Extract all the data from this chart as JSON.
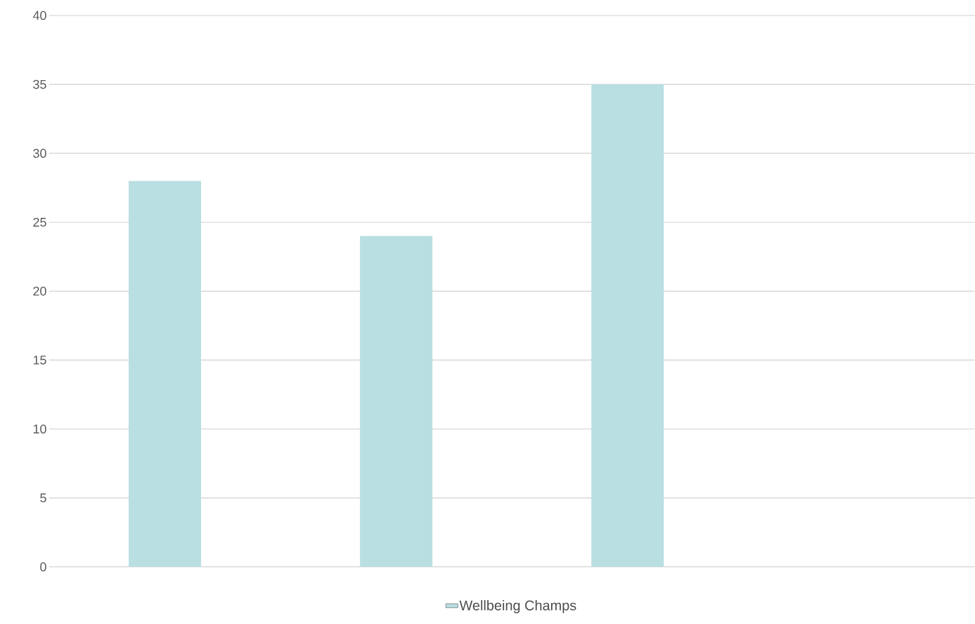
{
  "chart_data": {
    "type": "bar",
    "categories": [
      null,
      null,
      null,
      null
    ],
    "series": [
      {
        "name": "Wellbeing Champs",
        "color": "#b9dfe2",
        "values": [
          28,
          24,
          35,
          null
        ]
      }
    ],
    "ylim": [
      0,
      40
    ],
    "yticks": [
      0,
      5,
      10,
      15,
      20,
      25,
      30,
      35,
      40
    ],
    "grid": "y",
    "legend": "bottom"
  }
}
